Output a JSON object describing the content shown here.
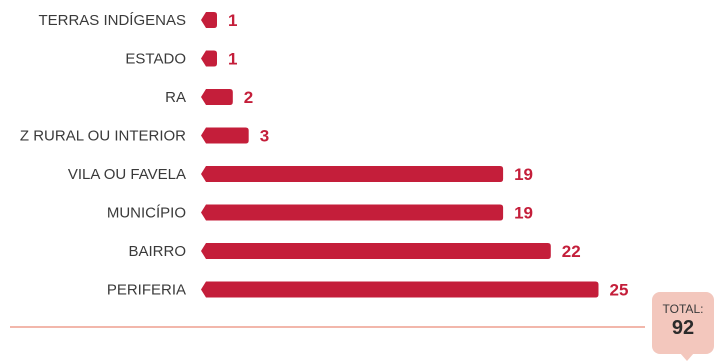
{
  "colors": {
    "bar": "#c41e3a",
    "value_text": "#c41e3a",
    "baseline": "#f2b7ab",
    "total_box": "#f3c7bd"
  },
  "total": {
    "label": "TOTAL:",
    "value": "92"
  },
  "chart_data": {
    "type": "bar",
    "orientation": "horizontal",
    "categories": [
      "TERRAS INDÍGENAS",
      "ESTADO",
      "RA",
      "Z RURAL OU INTERIOR",
      "VILA OU FAVELA",
      "MUNICÍPIO",
      "BAIRRO",
      "PERIFERIA"
    ],
    "values": [
      1,
      1,
      2,
      3,
      19,
      19,
      22,
      25
    ],
    "title": "",
    "xlabel": "",
    "ylabel": "",
    "grid": false,
    "legend": "none"
  }
}
